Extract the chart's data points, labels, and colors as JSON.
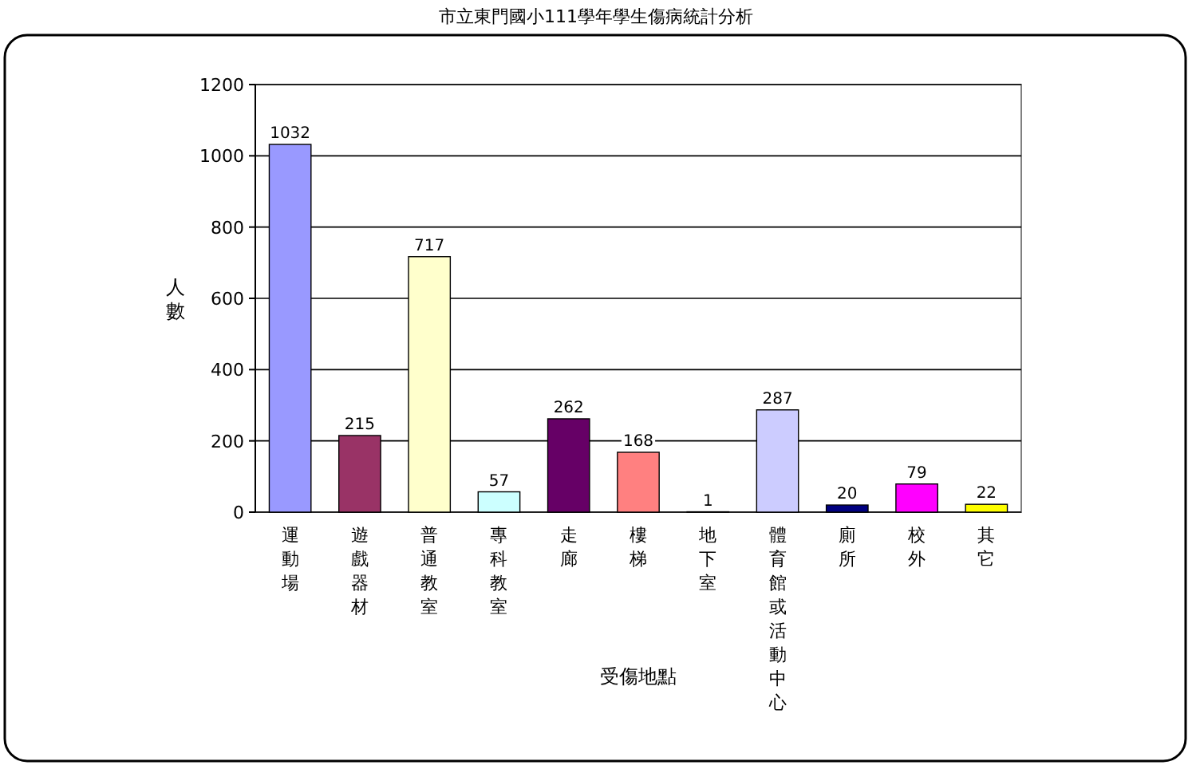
{
  "chart_data": {
    "type": "bar",
    "title": "市立東門國小111學年學生傷病統計分析",
    "xlabel": "受傷地點",
    "ylabel": "人數",
    "categories": [
      "運動場",
      "遊戲器材",
      "普通教室",
      "專科教室",
      "走廊",
      "樓梯",
      "地下室",
      "體育館或活動中心",
      "廁所",
      "校外",
      "其它"
    ],
    "values": [
      1032,
      215,
      717,
      57,
      262,
      168,
      1,
      287,
      20,
      79,
      22
    ],
    "colors": [
      "#9999ff",
      "#993366",
      "#ffffcc",
      "#ccffff",
      "#660066",
      "#ff8080",
      "#0066cc",
      "#ccccff",
      "#000080",
      "#ff00ff",
      "#ffff00"
    ],
    "ylim": [
      0,
      1200
    ],
    "yticks": [
      0,
      200,
      400,
      600,
      800,
      1000,
      1200
    ],
    "grid": "y",
    "data_labels": true
  }
}
